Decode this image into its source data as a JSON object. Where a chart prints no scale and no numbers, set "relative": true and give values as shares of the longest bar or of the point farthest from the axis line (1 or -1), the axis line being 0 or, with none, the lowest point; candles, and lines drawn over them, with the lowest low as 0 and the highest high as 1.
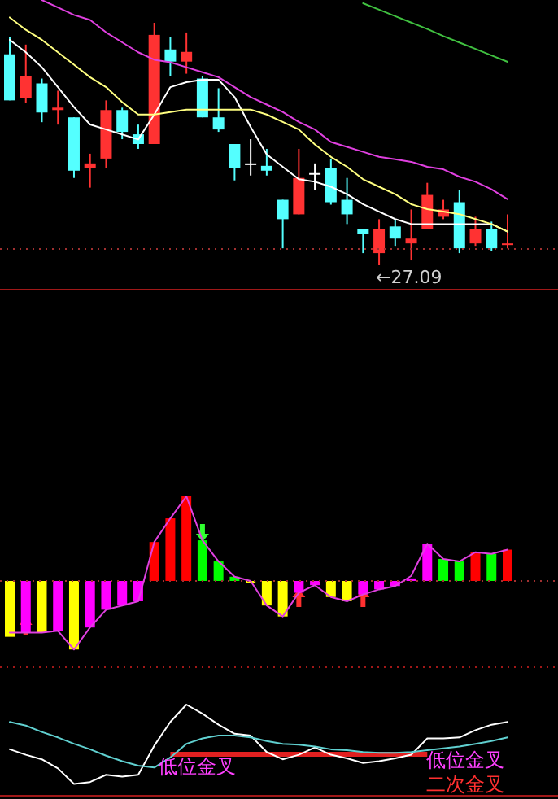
{
  "chart_data": [
    {
      "type": "candlestick",
      "relative": true,
      "categories": [
        null,
        null,
        null,
        null,
        null,
        null,
        null,
        null,
        null,
        null,
        null,
        null,
        null,
        null,
        null,
        null,
        null,
        null,
        null,
        null,
        null,
        null,
        null,
        null,
        null,
        null,
        null,
        null,
        null,
        null,
        null,
        null
      ],
      "ohlc": [
        [
          0.87,
          0.94,
          0.68,
          0.68
        ],
        [
          0.69,
          0.91,
          0.67,
          0.78
        ],
        [
          0.75,
          0.77,
          0.59,
          0.63
        ],
        [
          0.64,
          0.72,
          0.58,
          0.65
        ],
        [
          0.61,
          0.61,
          0.36,
          0.39
        ],
        [
          0.4,
          0.46,
          0.32,
          0.42
        ],
        [
          0.44,
          0.68,
          0.4,
          0.64
        ],
        [
          0.64,
          0.65,
          0.52,
          0.55
        ],
        [
          0.54,
          0.58,
          0.48,
          0.5
        ],
        [
          0.5,
          1,
          0.5,
          0.95
        ],
        [
          0.89,
          0.94,
          0.78,
          0.84
        ],
        [
          0.84,
          0.96,
          0.79,
          0.88
        ],
        [
          0.77,
          0.78,
          0.61,
          0.61
        ],
        [
          0.61,
          0.73,
          0.55,
          0.56
        ],
        [
          0.5,
          0.5,
          0.35,
          0.4
        ],
        [
          0.42,
          0.52,
          0.37,
          0.42
        ],
        [
          0.41,
          0.48,
          0.37,
          0.39
        ],
        [
          0.27,
          0.27,
          0.07,
          0.19
        ],
        [
          0.21,
          0.48,
          0.21,
          0.36
        ],
        [
          0.38,
          0.42,
          0.31,
          0.38
        ],
        [
          0.4,
          0.44,
          0.25,
          0.26
        ],
        [
          0.27,
          0.36,
          0.17,
          0.21
        ],
        [
          0.15,
          0.15,
          0.05,
          0.13
        ],
        [
          0.05,
          0.19,
          0,
          0.15
        ],
        [
          0.16,
          0.19,
          0.08,
          0.11
        ],
        [
          0.09,
          0.23,
          0.02,
          0.11
        ],
        [
          0.15,
          0.34,
          0.15,
          0.29
        ],
        [
          0.2,
          0.27,
          0.19,
          0.23
        ],
        [
          0.26,
          0.31,
          0.05,
          0.07
        ],
        [
          0.09,
          0.2,
          0.08,
          0.15
        ],
        [
          0.15,
          0.18,
          0.06,
          0.07
        ],
        [
          0.09,
          0.21,
          0.07,
          0.09
        ]
      ],
      "colors": [
        "#54ffff",
        "#ff3232",
        "#54ffff",
        "#ff3232",
        "#54ffff",
        "#ff3232",
        "#ff3232",
        "#54ffff",
        "#54ffff",
        "#ff3232",
        "#54ffff",
        "#ff3232",
        "#54ffff",
        "#54ffff",
        "#54ffff",
        "#ffffff",
        "#54ffff",
        "#54ffff",
        "#ff3232",
        "#ffffff",
        "#54ffff",
        "#54ffff",
        "#54ffff",
        "#ff3232",
        "#54ffff",
        "#ff3232",
        "#ff3232",
        "#ff3232",
        "#54ffff",
        "#ff3232",
        "#54ffff",
        "#ff3232"
      ],
      "annotations": [
        {
          "text": "←27.09",
          "y": 0
        }
      ]
    },
    {
      "type": "line",
      "relative": true,
      "categories": [
        null,
        null,
        null,
        null,
        null,
        null,
        null,
        null,
        null,
        null,
        null,
        null,
        null,
        null,
        null,
        null,
        null,
        null,
        null,
        null,
        null,
        null,
        null,
        null,
        null,
        null,
        null,
        null,
        null,
        null,
        null,
        null
      ],
      "ref_lines": [
        {
          "axis": "y",
          "value": 0,
          "color": "#a03030",
          "line_style": "dotted"
        }
      ],
      "series": [
        {
          "color": "#ffffff",
          "values": [
            0.84,
            0.79,
            0.73,
            0.65,
            0.57,
            0.5,
            0.48,
            0.46,
            0.44,
            0.54,
            0.65,
            0.67,
            0.68,
            0.68,
            0.61,
            0.49,
            0.38,
            0.33,
            0.28,
            0.27,
            0.25,
            0.22,
            0.18,
            0.15,
            0.12,
            0.1,
            0.1,
            0.1,
            0.1,
            0.1,
            0.1,
            0.07
          ]
        },
        {
          "color": "#ffff80",
          "values": [
            0.93,
            0.88,
            0.84,
            0.79,
            0.74,
            0.69,
            0.65,
            0.59,
            0.54,
            0.54,
            0.55,
            0.56,
            0.56,
            0.56,
            0.56,
            0.56,
            0.54,
            0.51,
            0.48,
            0.42,
            0.37,
            0.33,
            0.28,
            0.25,
            0.22,
            0.18,
            0.16,
            0.15,
            0.14,
            0.12,
            0.1,
            0.07
          ]
        },
        {
          "color": "#e040e0",
          "values": [
            null,
            null,
            1,
            0.97,
            0.94,
            0.92,
            0.87,
            0.83,
            0.79,
            0.76,
            0.75,
            0.73,
            0.71,
            0.69,
            0.65,
            0.61,
            0.58,
            0.55,
            0.51,
            0.48,
            0.43,
            0.41,
            0.39,
            0.37,
            0.36,
            0.35,
            0.33,
            0.32,
            0.29,
            0.27,
            0.24,
            0.2
          ]
        }
      ]
    },
    {
      "type": "line",
      "relative": true,
      "categories": [
        null,
        null,
        null,
        null,
        null,
        null,
        null,
        null,
        null,
        null,
        null,
        null,
        null,
        null,
        null,
        null,
        null,
        null,
        null,
        null,
        null,
        null,
        null,
        null,
        null,
        null,
        null,
        null,
        null,
        null,
        null,
        null
      ],
      "series": [
        {
          "color": "#40c040",
          "values": [
            null,
            null,
            null,
            null,
            null,
            null,
            null,
            null,
            null,
            null,
            null,
            null,
            null,
            null,
            null,
            null,
            null,
            null,
            null,
            null,
            null,
            null,
            1,
            0.89,
            0.78,
            0.67,
            0.56,
            0.44,
            0.33,
            0.22,
            0.11,
            0
          ]
        }
      ]
    },
    {
      "type": "bar",
      "relative": true,
      "categories": [
        null,
        null,
        null,
        null,
        null,
        null,
        null,
        null,
        null,
        null,
        null,
        null,
        null,
        null,
        null,
        null,
        null,
        null,
        null,
        null,
        null,
        null,
        null,
        null,
        null,
        null,
        null,
        null,
        null,
        null,
        null,
        null
      ],
      "values": [
        -0.66,
        -0.61,
        -0.61,
        -0.59,
        -0.81,
        -0.55,
        -0.34,
        -0.29,
        -0.24,
        0.46,
        0.74,
        1,
        0.48,
        0.23,
        0.05,
        -0.02,
        -0.29,
        -0.42,
        -0.14,
        -0.05,
        -0.19,
        -0.24,
        -0.16,
        -0.1,
        -0.06,
        0.03,
        0.44,
        0.26,
        0.23,
        0.34,
        0.32,
        0.37
      ],
      "colors": [
        "#ffff00",
        "#ff00ff",
        "#ffff00",
        "#ff00ff",
        "#ffff00",
        "#ff00ff",
        "#ff00ff",
        "#ff00ff",
        "#ff00ff",
        "#ff0000",
        "#ff0000",
        "#ff0000",
        "#00ff00",
        "#00ff00",
        "#00ff00",
        "#ffff00",
        "#ffff00",
        "#ffff00",
        "#ff00ff",
        "#ff00ff",
        "#ffff00",
        "#ffff00",
        "#ff00ff",
        "#ff00ff",
        "#ff00ff",
        "#ff00ff",
        "#ff00ff",
        "#00ff00",
        "#00ff00",
        "#ff0000",
        "#00ff00",
        "#ff0000"
      ]
    },
    {
      "type": "line",
      "relative": true,
      "categories": [
        null,
        null,
        null,
        null,
        null,
        null,
        null,
        null,
        null,
        null,
        null,
        null,
        null,
        null,
        null,
        null,
        null,
        null,
        null,
        null,
        null,
        null,
        null,
        null,
        null,
        null,
        null,
        null,
        null,
        null,
        null,
        null
      ],
      "ref_lines": [
        {
          "axis": "y",
          "value": 0,
          "color": "#a03030",
          "line_style": "dotted"
        }
      ],
      "series": [
        {
          "color": "#e040e0",
          "values": [
            -0.61,
            -0.61,
            -0.61,
            -0.59,
            -0.81,
            -0.55,
            -0.34,
            -0.29,
            -0.24,
            0.46,
            0.74,
            1,
            0.48,
            0.23,
            0.05,
            0,
            -0.29,
            -0.42,
            -0.14,
            -0.05,
            -0.19,
            -0.24,
            -0.16,
            -0.1,
            -0.06,
            0.06,
            0.44,
            0.26,
            0.23,
            0.34,
            0.32,
            0.37
          ]
        }
      ]
    },
    {
      "type": "line",
      "relative": true,
      "categories": [
        null,
        null,
        null,
        null,
        null,
        null,
        null,
        null,
        null,
        null,
        null,
        null,
        null,
        null,
        null,
        null,
        null,
        null,
        null,
        null,
        null,
        null,
        null,
        null,
        null,
        null,
        null,
        null,
        null,
        null,
        null,
        null
      ],
      "ref_lines": [
        {
          "axis": "y",
          "value": 0,
          "color": "#a01818",
          "line_style": "solid"
        }
      ],
      "series": [
        {
          "color": "#ffffff",
          "values": [
            0.51,
            0.45,
            0.4,
            0.3,
            0.13,
            0.15,
            0.23,
            0.21,
            0.23,
            0.55,
            0.81,
            1,
            0.9,
            0.78,
            0.68,
            0.66,
            0.48,
            0.4,
            0.45,
            0.53,
            0.45,
            0.41,
            0.36,
            0.38,
            0.41,
            0.45,
            0.63,
            0.63,
            0.64,
            0.72,
            0.78,
            0.81
          ]
        },
        {
          "color": "#60d0d0",
          "values": [
            0.81,
            0.77,
            0.7,
            0.64,
            0.57,
            0.51,
            0.44,
            0.38,
            0.33,
            0.31,
            0.42,
            0.57,
            0.63,
            0.66,
            0.66,
            0.64,
            0.6,
            0.57,
            0.56,
            0.54,
            0.51,
            0.5,
            0.48,
            0.47,
            0.47,
            0.48,
            0.5,
            0.52,
            0.54,
            0.57,
            0.6,
            0.64
          ]
        }
      ],
      "annotations": [
        "低位金叉",
        "低位金叉",
        "二次金叉"
      ]
    }
  ]
}
